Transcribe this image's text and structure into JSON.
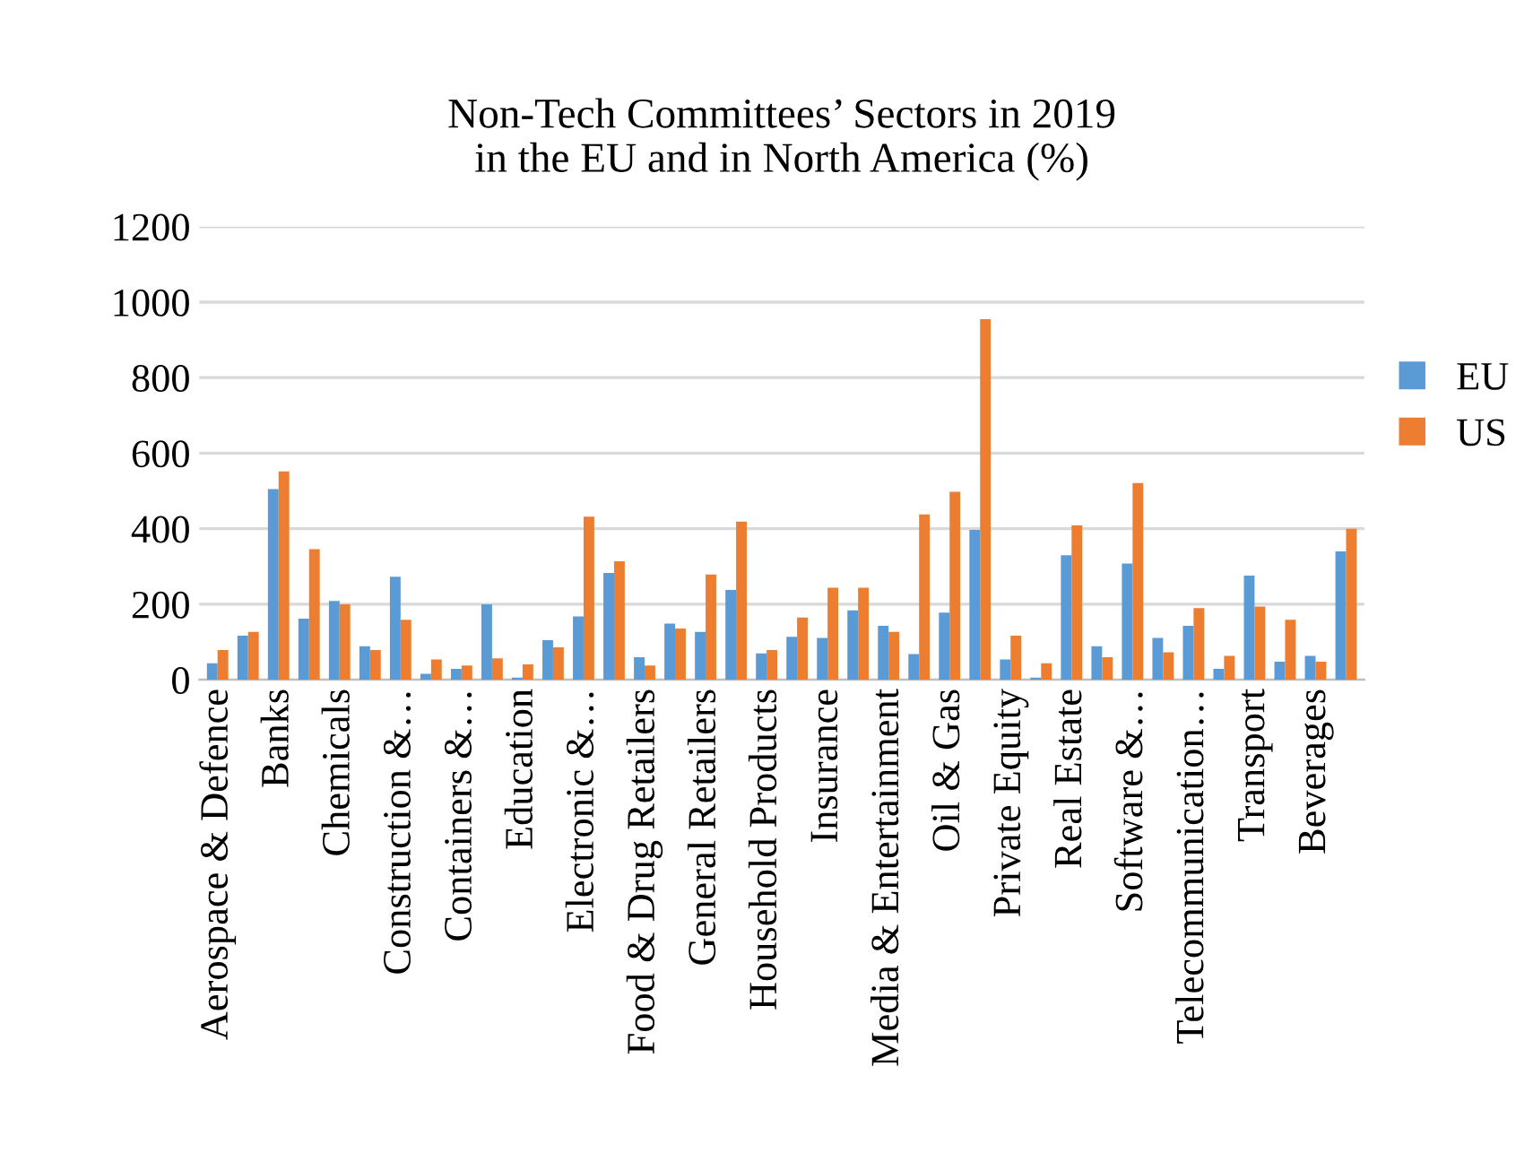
{
  "chart_data": {
    "type": "bar",
    "title": "Non-Tech Committees’ Sectors in 2019\nin the EU and in North America (%)",
    "categories": [
      "Aerospace & Defence",
      null,
      "Banks",
      null,
      "Chemicals",
      null,
      "Construction &…",
      null,
      "Containers &…",
      null,
      "Education",
      null,
      "Electronic &…",
      null,
      "Food & Drug Retailers",
      null,
      "General Retailers",
      null,
      "Household Products",
      null,
      "Insurance",
      null,
      "Media & Entertainment",
      null,
      "Oil & Gas",
      null,
      "Private Equity",
      null,
      "Real Estate",
      null,
      "Software &…",
      null,
      "Telecommunication…",
      null,
      "Transport",
      null,
      "Beverages",
      null
    ],
    "series": [
      {
        "name": "EU",
        "color": "#5b9bd5",
        "values": [
          44,
          117,
          505,
          162,
          209,
          89,
          273,
          16,
          29,
          200,
          6,
          105,
          168,
          283,
          60,
          149,
          127,
          238,
          70,
          114,
          111,
          184,
          143,
          68,
          178,
          397,
          54,
          6,
          330,
          89,
          308,
          111,
          143,
          29,
          276,
          48,
          63,
          340
        ]
      },
      {
        "name": "US",
        "color": "#ed7d31",
        "values": [
          79,
          127,
          552,
          346,
          200,
          79,
          159,
          54,
          38,
          57,
          41,
          86,
          432,
          314,
          38,
          136,
          279,
          419,
          79,
          165,
          244,
          244,
          127,
          438,
          498,
          955,
          117,
          44,
          409,
          60,
          521,
          73,
          190,
          63,
          194,
          159,
          48,
          400
        ]
      }
    ],
    "ylim": [
      0,
      1200
    ],
    "yticks": [
      0,
      200,
      400,
      600,
      800,
      1000,
      1200
    ],
    "grid": "y",
    "legend": "right"
  }
}
